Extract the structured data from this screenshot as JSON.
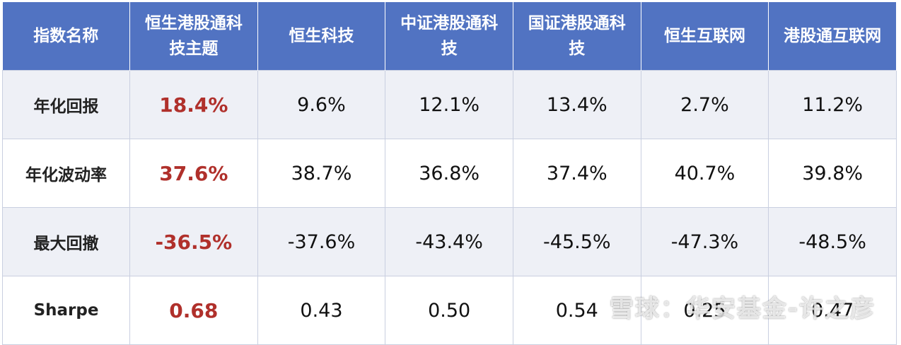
{
  "table": {
    "header": [
      "指数名称",
      "恒生港股通科技主题",
      "恒生科技",
      "中证港股通科技",
      "国证港股通科技",
      "恒生互联网",
      "港股通互联网"
    ],
    "rows": [
      [
        "年化回报",
        "18.4%",
        "9.6%",
        "12.1%",
        "13.4%",
        "2.7%",
        "11.2%"
      ],
      [
        "年化波动率",
        "37.6%",
        "38.7%",
        "36.8%",
        "37.4%",
        "40.7%",
        "39.8%"
      ],
      [
        "最大回撤",
        "-36.5%",
        "-37.6%",
        "-43.4%",
        "-45.5%",
        "-47.3%",
        "-48.5%"
      ],
      [
        "Sharpe",
        "0.68",
        "0.43",
        "0.50",
        "0.54",
        "0.25",
        "0.47"
      ]
    ]
  },
  "watermark": "雪球：华安基金-许之彦"
}
